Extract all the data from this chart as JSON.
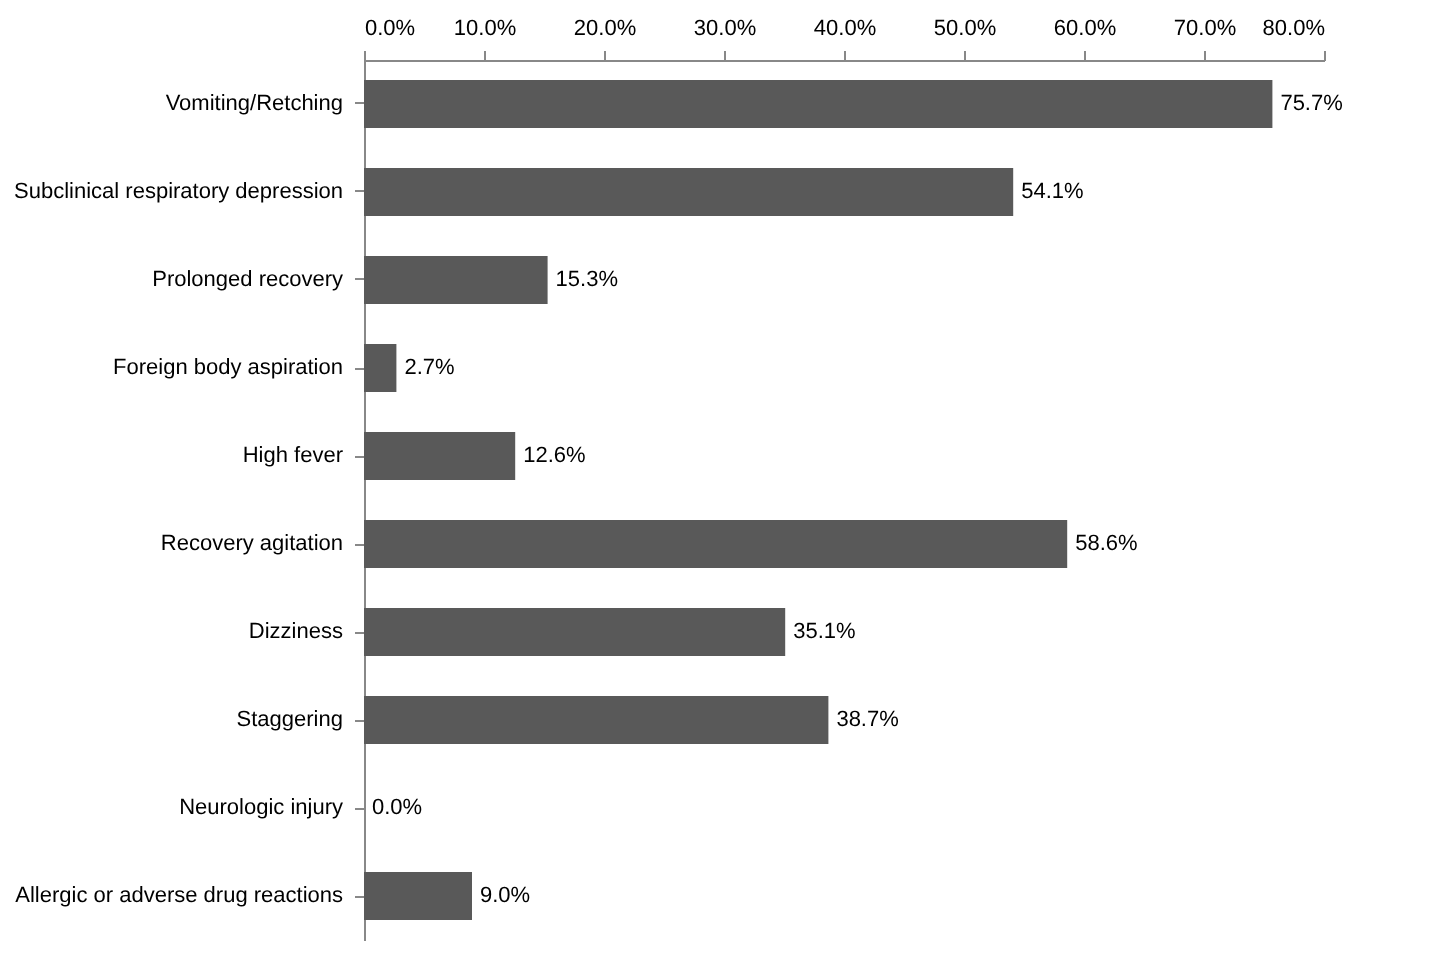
{
  "chart_data": {
    "type": "bar",
    "orientation": "horizontal",
    "categories": [
      "Vomiting/Retching",
      "Subclinical respiratory depression",
      "Prolonged recovery",
      "Foreign body aspiration",
      "High fever",
      "Recovery agitation",
      "Dizziness",
      "Staggering",
      "Neurologic injury",
      "Allergic or adverse drug reactions"
    ],
    "values": [
      75.7,
      54.1,
      15.3,
      2.7,
      12.6,
      58.6,
      35.1,
      38.7,
      0.0,
      9.0
    ],
    "value_labels": [
      "75.7%",
      "54.1%",
      "15.3%",
      "2.7%",
      "12.6%",
      "58.6%",
      "35.1%",
      "38.7%",
      "0.0%",
      "9.0%"
    ],
    "color": "#595959",
    "xlim": [
      0,
      80
    ],
    "xticks": [
      {
        "value": 0,
        "label": "0.0%"
      },
      {
        "value": 10,
        "label": "10.0%"
      },
      {
        "value": 20,
        "label": "20.0%"
      },
      {
        "value": 30,
        "label": "30.0%"
      },
      {
        "value": 40,
        "label": "40.0%"
      },
      {
        "value": 50,
        "label": "50.0%"
      },
      {
        "value": 60,
        "label": "60.0%"
      },
      {
        "value": 70,
        "label": "70.0%"
      },
      {
        "value": 80,
        "label": "80.0%"
      }
    ],
    "grid": false
  }
}
